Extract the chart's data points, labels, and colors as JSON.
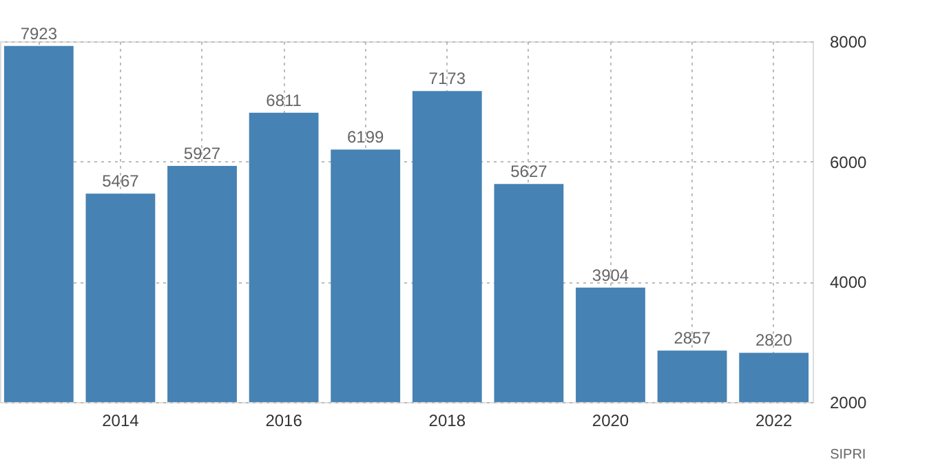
{
  "chart_data": {
    "type": "bar",
    "categories": [
      null,
      "2014",
      null,
      "2016",
      null,
      "2018",
      null,
      "2020",
      null,
      "2022"
    ],
    "values": [
      7923,
      5467,
      5927,
      6811,
      6199,
      7173,
      5627,
      3904,
      2857,
      2820
    ],
    "color": "#4682b4",
    "ylim": [
      2000,
      8000
    ],
    "yticks": [
      2000,
      4000,
      6000,
      8000
    ],
    "grid": true,
    "data_labels": true,
    "annotations": [
      "SIPRI"
    ]
  }
}
